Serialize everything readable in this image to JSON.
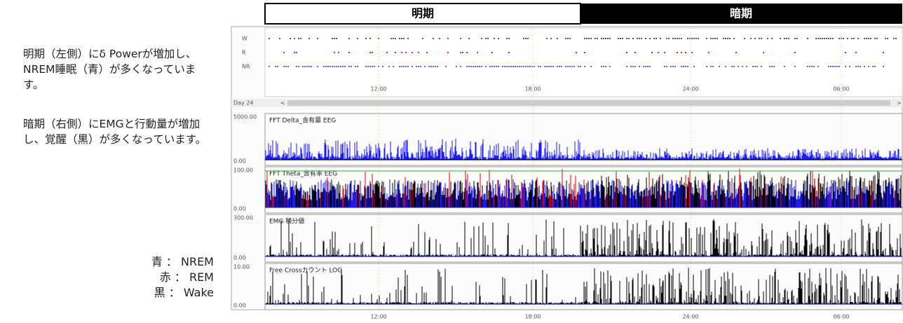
{
  "notes": [
    "明期（左側）にδ Powerが増加し、NREM睡眠（青）が多くなっています。",
    "暗期（右側）にEMGと行動量が増加し、覚醒（黒）が多くなっています。"
  ],
  "legend": [
    "青 ： NREM",
    "赤 ： REM",
    "黒 ： Wake"
  ],
  "header": {
    "light": "明期",
    "dark": "暗期"
  },
  "hypnogram": {
    "stages": [
      "W",
      "R",
      "NR"
    ],
    "times": [
      "12:00",
      "18:00",
      "24:00",
      "06:00"
    ]
  },
  "navigator": {
    "day": "Day 24",
    "prev": "<",
    "next": ">"
  },
  "panels": [
    {
      "label": "FFT  Delta_含有量  EEG",
      "ymax": "5000.00",
      "ymin": "0.00"
    },
    {
      "label": "FFT  Theta_含有率  EEG",
      "ymax": "100.00",
      "ymin": "0.00"
    },
    {
      "label": "EMG  積分値",
      "ymax": "300.00",
      "ymin": "0.00"
    },
    {
      "label": "Free  Crossカウント  LOG",
      "ymax": "10.00",
      "ymin": "0.00"
    }
  ],
  "time_axis": [
    "12:00",
    "18:00",
    "24:00",
    "06:00"
  ]
}
